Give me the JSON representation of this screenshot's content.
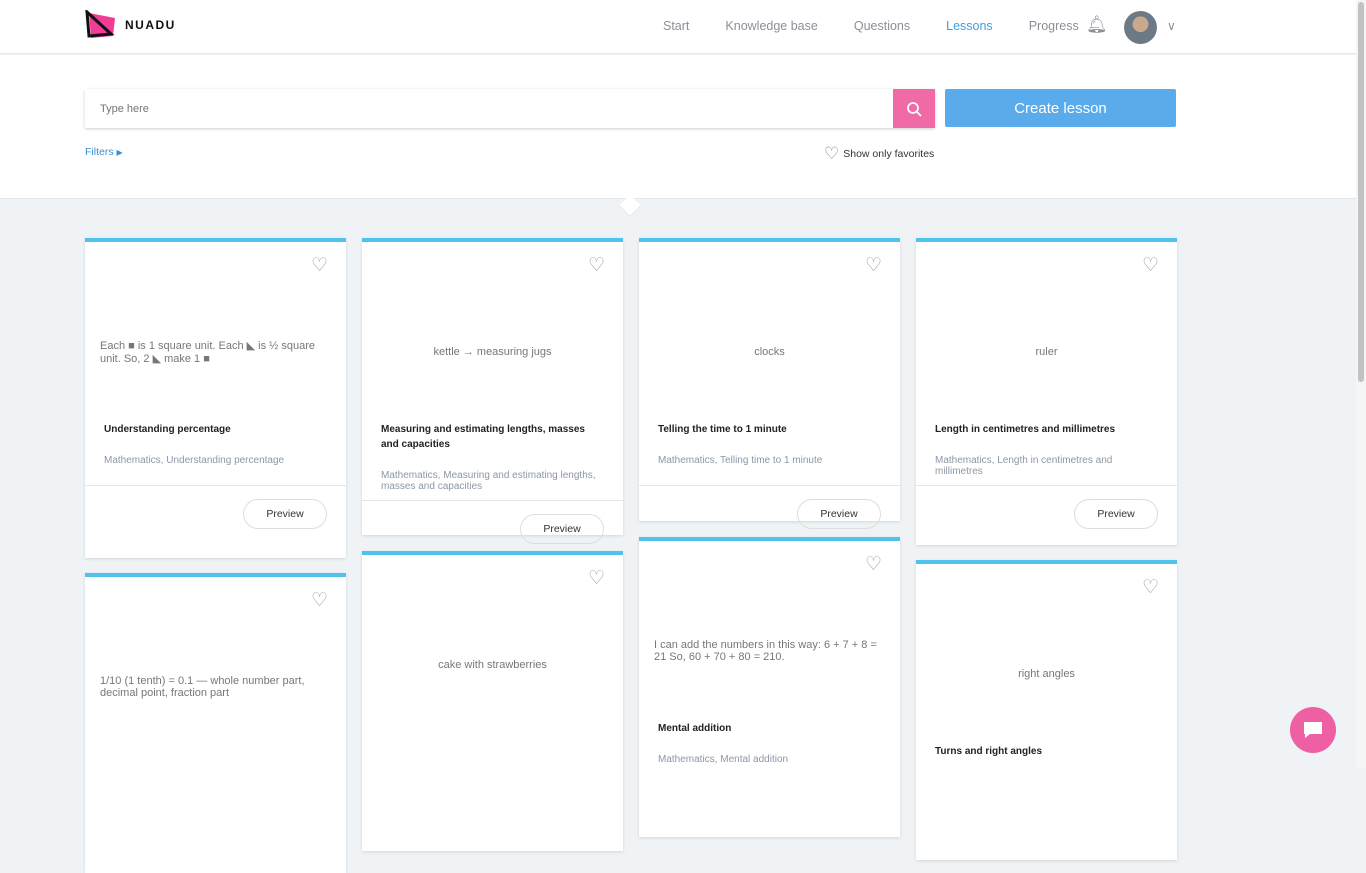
{
  "brand": {
    "name": "NUADU",
    "accent": "#f06aa8",
    "primary": "#5aabec"
  },
  "nav": {
    "items": [
      "Start",
      "Knowledge base",
      "Questions",
      "Lessons",
      "Progress"
    ],
    "active": "Lessons"
  },
  "search": {
    "placeholder": "Type here",
    "value": ""
  },
  "create_label": "Create lesson",
  "filters_label": "Filters",
  "favorites_label": "Show only favorites",
  "preview_label": "Preview",
  "cards": [
    {
      "title": "Understanding percentage",
      "subtitle": "Mathematics, Understanding percentage",
      "image": "Each ■ is 1 square unit. Each ◣ is ½ square unit. So, 2 ◣ make 1 ■"
    },
    {
      "title": "Measuring and estimating lengths, masses and capacities",
      "subtitle": "Mathematics, Measuring and estimating lengths, masses and capacities",
      "image": "kettle → measuring jugs"
    },
    {
      "title": "Telling the time to 1 minute",
      "subtitle": "Mathematics, Telling time to 1 minute",
      "image": "clocks"
    },
    {
      "title": "Length in centimetres and millimetres",
      "subtitle": "Mathematics, Length in centimetres and millimetres",
      "image": "ruler"
    },
    {
      "title": "",
      "subtitle": "",
      "image": "1/10 (1 tenth) = 0.1 — whole number part, decimal point, fraction part"
    },
    {
      "title": "",
      "subtitle": "",
      "image": "cake with strawberries"
    },
    {
      "title": "Mental addition",
      "subtitle": "Mathematics, Mental addition",
      "image": "I can add the numbers in this way: 6 + 7 + 8 = 21 So, 60 + 70 + 80 = 210."
    },
    {
      "title": "Turns and right angles",
      "subtitle": "",
      "image": "right angles"
    }
  ]
}
